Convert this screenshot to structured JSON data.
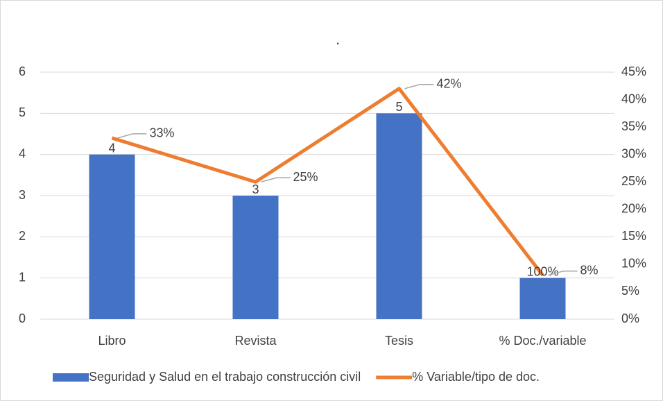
{
  "chart_data": {
    "type": "bar",
    "title": ".",
    "categories": [
      "Libro",
      "Revista",
      "Tesis",
      "% Doc./variable"
    ],
    "series": [
      {
        "name": "Seguridad y Salud en el trabajo construcción civil",
        "type": "bar",
        "color": "#4472c4",
        "values": [
          4,
          3,
          5,
          1
        ],
        "value_labels": [
          "4",
          "3",
          "5",
          "100%"
        ]
      },
      {
        "name": "% Variable/tipo de doc.",
        "type": "line",
        "axis": "y2",
        "color": "#ed7d31",
        "values": [
          33,
          25,
          42,
          8
        ],
        "value_labels": [
          "33%",
          "25%",
          "42%",
          "8%"
        ]
      }
    ],
    "ylim": [
      0,
      6
    ],
    "yticks": [
      0,
      1,
      2,
      3,
      4,
      5,
      6
    ],
    "y2lim": [
      0,
      45
    ],
    "y2ticks": [
      {
        "value": 0,
        "label": "0%"
      },
      {
        "value": 5,
        "label": "5%"
      },
      {
        "value": 10,
        "label": "10%"
      },
      {
        "value": 15,
        "label": "15%"
      },
      {
        "value": 20,
        "label": "20%"
      },
      {
        "value": 25,
        "label": "25%"
      },
      {
        "value": 30,
        "label": "30%"
      },
      {
        "value": 35,
        "label": "35%"
      },
      {
        "value": 40,
        "label": "40%"
      },
      {
        "value": 45,
        "label": "45%"
      }
    ],
    "grid": true,
    "legend": "bottom"
  }
}
